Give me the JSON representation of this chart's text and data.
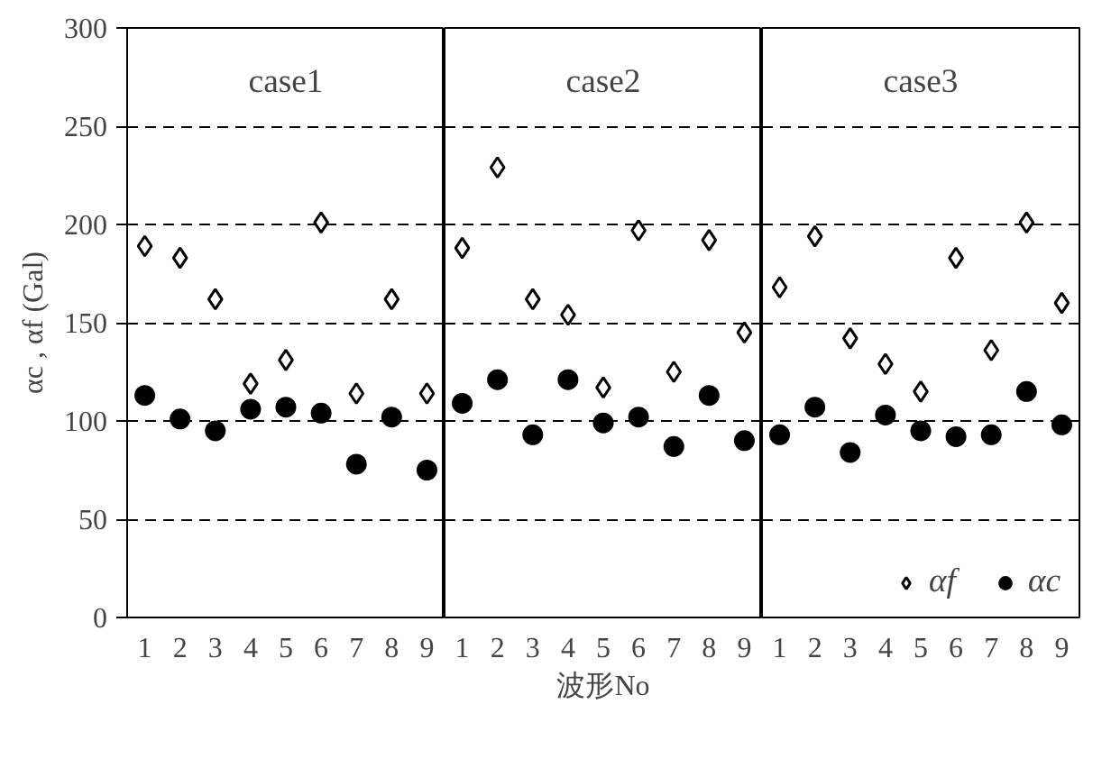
{
  "chart_data": [
    {
      "type": "scatter",
      "title": "case1",
      "ylabel": "αc , αf (Gal)",
      "categories": [
        "1",
        "2",
        "3",
        "4",
        "5",
        "6",
        "7",
        "8",
        "9"
      ],
      "ylim": [
        0,
        300
      ],
      "yticks": [
        0,
        50,
        100,
        150,
        200,
        250,
        300
      ],
      "grid": "y",
      "series": [
        {
          "color": "#000000",
          "marker": "diamond",
          "values": [
            189,
            183,
            162,
            119,
            131,
            201,
            114,
            162,
            114
          ]
        },
        {
          "color": "#000000",
          "marker": "circle",
          "values": [
            113,
            101,
            95,
            106,
            107,
            104,
            78,
            102,
            75
          ]
        }
      ]
    },
    {
      "type": "scatter",
      "title": "case2",
      "xlabel": "波形No",
      "categories": [
        "1",
        "2",
        "3",
        "4",
        "5",
        "6",
        "7",
        "8",
        "9"
      ],
      "ylim": [
        0,
        300
      ],
      "yticks": [
        0,
        50,
        100,
        150,
        200,
        250,
        300
      ],
      "grid": "y",
      "tick_labels": "x",
      "series": [
        {
          "color": "#000000",
          "marker": "diamond",
          "values": [
            188,
            229,
            162,
            154,
            117,
            197,
            125,
            192,
            145
          ]
        },
        {
          "color": "#000000",
          "marker": "circle",
          "values": [
            109,
            121,
            93,
            121,
            99,
            102,
            87,
            113,
            90
          ]
        }
      ]
    },
    {
      "type": "scatter",
      "title": "case3",
      "categories": [
        "1",
        "2",
        "3",
        "4",
        "5",
        "6",
        "7",
        "8",
        "9"
      ],
      "ylim": [
        0,
        300
      ],
      "yticks": [
        0,
        50,
        100,
        150,
        200,
        250,
        300
      ],
      "grid": "y",
      "tick_labels": "x",
      "legend": "bottom right",
      "series": [
        {
          "name": "αf",
          "color": "#000000",
          "marker": "diamond",
          "values": [
            168,
            194,
            142,
            129,
            115,
            183,
            136,
            201,
            160
          ]
        },
        {
          "name": "αc",
          "color": "#000000",
          "marker": "circle",
          "values": [
            93,
            107,
            84,
            103,
            95,
            92,
            93,
            115,
            98
          ]
        }
      ]
    }
  ]
}
